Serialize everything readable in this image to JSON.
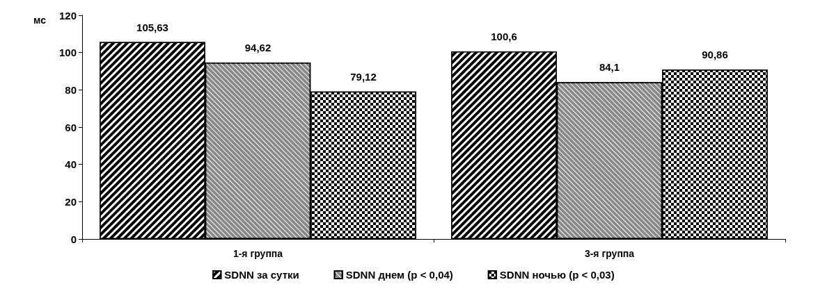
{
  "chart_data": {
    "type": "bar",
    "ylabel": "мс",
    "categories": [
      "1-я группа",
      "3-я группа"
    ],
    "series": [
      {
        "name": "SDNN за сутки",
        "color": "#000000",
        "values": [
          105.63,
          100.6
        ],
        "value_labels": [
          "105,63",
          "100,6"
        ]
      },
      {
        "name": "SDNN днем (p < 0,04)",
        "color": "#888888",
        "values": [
          94.62,
          84.1
        ],
        "value_labels": [
          "94,62",
          "84,1"
        ]
      },
      {
        "name": "SDNN ночью (p < 0,03)",
        "color": "#000000",
        "values": [
          79.12,
          90.86
        ],
        "value_labels": [
          "79,12",
          "90,86"
        ]
      }
    ],
    "ylim": [
      0,
      120
    ],
    "yticks": [
      0,
      20,
      40,
      60,
      80,
      100,
      120
    ],
    "grid": false,
    "legend": "bottom"
  }
}
